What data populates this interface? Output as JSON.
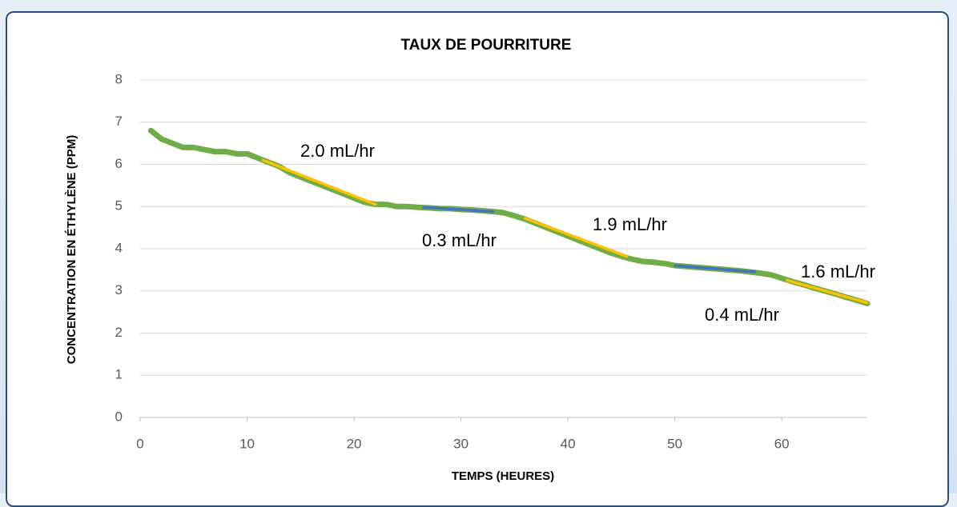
{
  "chart_data": {
    "type": "line",
    "title": "TAUX DE POURRITURE",
    "xlabel": "TEMPS (HEURES)",
    "ylabel": "CONCENTRATION EN ÉTHYLÈNE (PPM)",
    "xlim": [
      0,
      68
    ],
    "ylim": [
      0,
      8
    ],
    "xticks": [
      0,
      10,
      20,
      30,
      40,
      50,
      60
    ],
    "yticks": [
      0,
      1,
      2,
      3,
      4,
      5,
      6,
      7,
      8
    ],
    "grid": true,
    "series": [
      {
        "color": "#70ad47",
        "x": [
          1,
          2,
          3,
          4,
          5,
          6,
          7,
          8,
          9,
          10,
          11,
          12,
          13,
          14,
          15,
          16,
          17,
          18,
          19,
          20,
          21,
          22,
          23,
          24,
          25,
          26,
          27,
          28,
          29,
          30,
          31,
          32,
          33,
          34,
          35,
          36,
          37,
          38,
          39,
          40,
          41,
          42,
          43,
          44,
          45,
          46,
          47,
          48,
          49,
          50,
          51,
          52,
          53,
          54,
          55,
          56,
          57,
          58,
          59,
          60,
          61,
          62,
          63,
          64,
          65,
          66,
          67,
          68
        ],
        "values": [
          6.8,
          6.6,
          6.5,
          6.4,
          6.4,
          6.35,
          6.3,
          6.3,
          6.25,
          6.25,
          6.15,
          6.05,
          5.95,
          5.8,
          5.7,
          5.6,
          5.5,
          5.4,
          5.3,
          5.2,
          5.1,
          5.05,
          5.05,
          5.0,
          5.0,
          4.98,
          4.97,
          4.95,
          4.95,
          4.93,
          4.92,
          4.9,
          4.88,
          4.85,
          4.78,
          4.7,
          4.6,
          4.5,
          4.4,
          4.3,
          4.2,
          4.1,
          4.0,
          3.9,
          3.82,
          3.75,
          3.7,
          3.68,
          3.65,
          3.6,
          3.58,
          3.56,
          3.54,
          3.52,
          3.5,
          3.48,
          3.45,
          3.42,
          3.38,
          3.3,
          3.22,
          3.15,
          3.07,
          3.0,
          2.93,
          2.85,
          2.78,
          2.7
        ]
      },
      {
        "color": "#ffc000",
        "x": [
          11.5,
          22
        ],
        "values": [
          6.1,
          5.05
        ],
        "label": "2.0 mL/hr"
      },
      {
        "color": "#4472c4",
        "x": [
          26.5,
          33
        ],
        "values": [
          4.98,
          4.88
        ],
        "label": "0.3 mL/hr"
      },
      {
        "color": "#ffc000",
        "x": [
          36,
          45.5
        ],
        "values": [
          4.72,
          3.82
        ],
        "label": "1.9 mL/hr"
      },
      {
        "color": "#4472c4",
        "x": [
          50,
          57.5
        ],
        "values": [
          3.6,
          3.45
        ],
        "label": "0.4 mL/hr"
      },
      {
        "color": "#ffc000",
        "x": [
          60.5,
          68
        ],
        "values": [
          3.25,
          2.72
        ],
        "label": "1.6 mL/hr"
      }
    ]
  }
}
